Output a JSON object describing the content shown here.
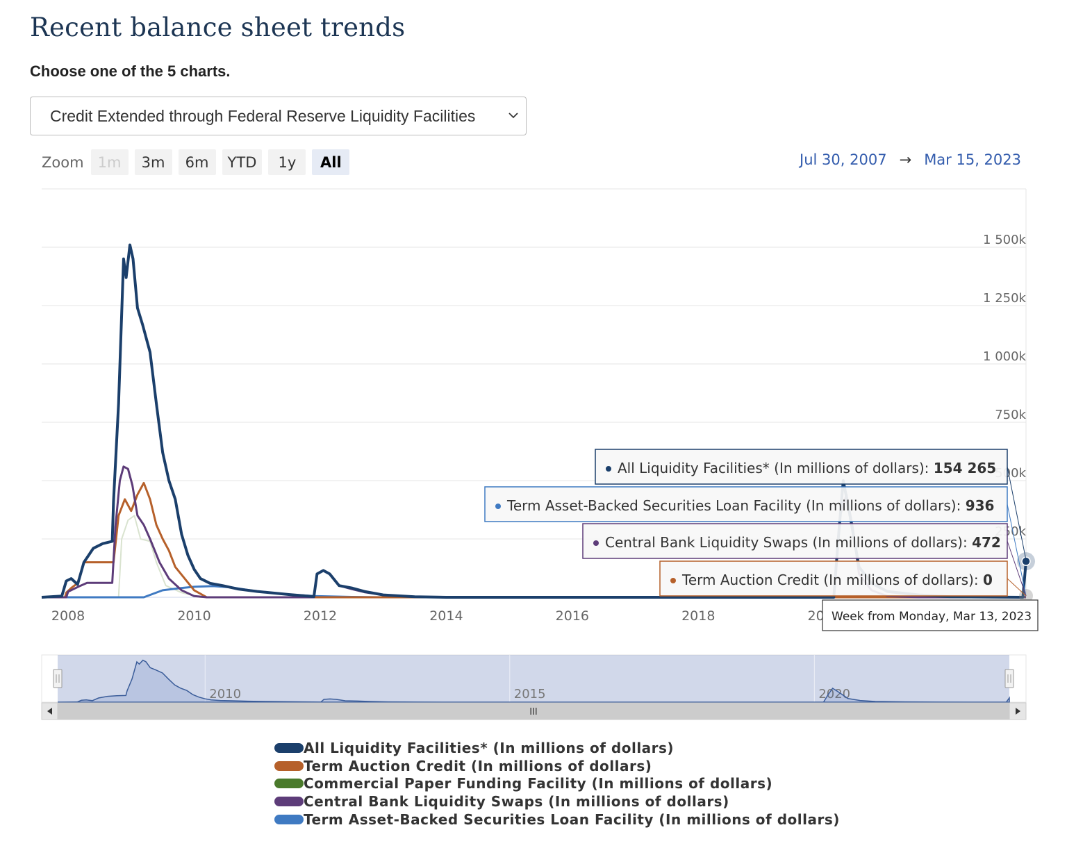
{
  "page": {
    "title": "Recent balance sheet trends",
    "prompt": "Choose one of the 5 charts.",
    "select_value": "Credit Extended through Federal Reserve Liquidity Facilities"
  },
  "zoom": {
    "label": "Zoom",
    "buttons": [
      {
        "label": "1m",
        "state": "disabled"
      },
      {
        "label": "3m",
        "state": "normal"
      },
      {
        "label": "6m",
        "state": "normal"
      },
      {
        "label": "YTD",
        "state": "normal"
      },
      {
        "label": "1y",
        "state": "normal"
      },
      {
        "label": "All",
        "state": "active"
      }
    ]
  },
  "range": {
    "from": "Jul 30, 2007",
    "arrow": "→",
    "to": "Mar 15, 2023"
  },
  "tooltip": {
    "week_label": "Week from Monday, Mar 13, 2023",
    "entries": [
      {
        "text": "All Liquidity Facilities* (In millions of dollars): ",
        "value": "154 265",
        "color": "#1b3f6b"
      },
      {
        "text": "Term Asset-Backed Securities Loan Facility (In millions of dollars): ",
        "value": "936",
        "color": "#3f7ac2"
      },
      {
        "text": "Central Bank Liquidity Swaps (In millions of dollars): ",
        "value": "472",
        "color": "#5d3c79"
      },
      {
        "text": "Term Auction Credit (In millions of dollars): ",
        "value": "0",
        "color": "#b6602a"
      }
    ]
  },
  "navigator": {
    "labels": [
      {
        "text": "2010",
        "year": 2010
      },
      {
        "text": "2015",
        "year": 2015
      },
      {
        "text": "2020",
        "year": 2020
      }
    ],
    "scroll_grip": "III"
  },
  "chart_data": {
    "type": "line",
    "y_ticks": [
      {
        "value": 250000,
        "label": "250k"
      },
      {
        "value": 500000,
        "label": "500k"
      },
      {
        "value": 750000,
        "label": "750k"
      },
      {
        "value": 1000000,
        "label": "1 000k"
      },
      {
        "value": 1250000,
        "label": "1 250k"
      },
      {
        "value": 1500000,
        "label": "1 500k"
      }
    ],
    "x_ticks": [
      2008,
      2010,
      2012,
      2014,
      2016,
      2018,
      2020
    ],
    "xlim": [
      2007.58,
      2023.2
    ],
    "ylim": [
      0,
      1750000
    ],
    "legend_position": "bottom",
    "series": [
      {
        "name": "All Liquidity Facilities* (In millions of dollars)",
        "color": "#1b3f6b",
        "points": [
          [
            2007.58,
            0
          ],
          [
            2007.9,
            5000
          ],
          [
            2007.97,
            70000
          ],
          [
            2008.05,
            80000
          ],
          [
            2008.15,
            55000
          ],
          [
            2008.25,
            150000
          ],
          [
            2008.4,
            210000
          ],
          [
            2008.55,
            230000
          ],
          [
            2008.7,
            240000
          ],
          [
            2008.72,
            410000
          ],
          [
            2008.8,
            830000
          ],
          [
            2008.88,
            1450000
          ],
          [
            2008.92,
            1370000
          ],
          [
            2008.98,
            1510000
          ],
          [
            2009.03,
            1450000
          ],
          [
            2009.1,
            1240000
          ],
          [
            2009.18,
            1170000
          ],
          [
            2009.3,
            1050000
          ],
          [
            2009.4,
            830000
          ],
          [
            2009.5,
            620000
          ],
          [
            2009.6,
            500000
          ],
          [
            2009.7,
            420000
          ],
          [
            2009.8,
            270000
          ],
          [
            2009.9,
            180000
          ],
          [
            2010.0,
            120000
          ],
          [
            2010.1,
            80000
          ],
          [
            2010.25,
            60000
          ],
          [
            2010.45,
            50000
          ],
          [
            2010.7,
            35000
          ],
          [
            2011.0,
            25000
          ],
          [
            2011.5,
            12000
          ],
          [
            2011.9,
            3000
          ],
          [
            2011.95,
            100000
          ],
          [
            2012.05,
            115000
          ],
          [
            2012.15,
            100000
          ],
          [
            2012.3,
            50000
          ],
          [
            2012.5,
            40000
          ],
          [
            2012.7,
            25000
          ],
          [
            2013.0,
            10000
          ],
          [
            2013.5,
            2000
          ],
          [
            2014.0,
            0
          ],
          [
            2020.15,
            0
          ],
          [
            2020.22,
            250000
          ],
          [
            2020.3,
            500000
          ],
          [
            2020.4,
            360000
          ],
          [
            2020.55,
            130000
          ],
          [
            2020.75,
            60000
          ],
          [
            2021.0,
            25000
          ],
          [
            2021.5,
            10000
          ],
          [
            2022.0,
            2000
          ],
          [
            2023.15,
            0
          ],
          [
            2023.2,
            154265
          ]
        ]
      },
      {
        "name": "Term Auction Credit (In millions of dollars)",
        "color": "#b6602a",
        "points": [
          [
            2007.58,
            0
          ],
          [
            2007.95,
            0
          ],
          [
            2007.97,
            20000
          ],
          [
            2008.05,
            40000
          ],
          [
            2008.15,
            60000
          ],
          [
            2008.25,
            150000
          ],
          [
            2008.55,
            150000
          ],
          [
            2008.72,
            150000
          ],
          [
            2008.8,
            350000
          ],
          [
            2008.9,
            420000
          ],
          [
            2009.0,
            370000
          ],
          [
            2009.1,
            440000
          ],
          [
            2009.2,
            490000
          ],
          [
            2009.3,
            420000
          ],
          [
            2009.4,
            310000
          ],
          [
            2009.5,
            250000
          ],
          [
            2009.6,
            200000
          ],
          [
            2009.7,
            130000
          ],
          [
            2009.85,
            80000
          ],
          [
            2010.0,
            30000
          ],
          [
            2010.2,
            0
          ],
          [
            2023.2,
            0
          ]
        ]
      },
      {
        "name": "Commercial Paper Funding Facility (In millions of dollars)",
        "color": "#4a7a2b",
        "points": [
          [
            2007.58,
            0
          ],
          [
            2008.8,
            0
          ],
          [
            2008.85,
            250000
          ],
          [
            2008.95,
            330000
          ],
          [
            2009.05,
            350000
          ],
          [
            2009.15,
            250000
          ],
          [
            2009.3,
            240000
          ],
          [
            2009.4,
            150000
          ],
          [
            2009.55,
            50000
          ],
          [
            2009.8,
            20000
          ],
          [
            2010.1,
            0
          ],
          [
            2020.25,
            0
          ],
          [
            2020.3,
            10000
          ],
          [
            2020.45,
            8000
          ],
          [
            2020.8,
            5000
          ],
          [
            2021.3,
            0
          ],
          [
            2023.2,
            0
          ]
        ]
      },
      {
        "name": "Central Bank Liquidity Swaps (In millions of dollars)",
        "color": "#5d3c79",
        "points": [
          [
            2007.58,
            0
          ],
          [
            2007.97,
            0
          ],
          [
            2008.0,
            24000
          ],
          [
            2008.2,
            50000
          ],
          [
            2008.3,
            62000
          ],
          [
            2008.7,
            62000
          ],
          [
            2008.75,
            300000
          ],
          [
            2008.82,
            500000
          ],
          [
            2008.88,
            560000
          ],
          [
            2008.95,
            550000
          ],
          [
            2009.02,
            480000
          ],
          [
            2009.1,
            350000
          ],
          [
            2009.2,
            310000
          ],
          [
            2009.3,
            250000
          ],
          [
            2009.45,
            150000
          ],
          [
            2009.6,
            80000
          ],
          [
            2009.8,
            30000
          ],
          [
            2010.0,
            5000
          ],
          [
            2010.2,
            0
          ],
          [
            2011.9,
            0
          ],
          [
            2011.95,
            100000
          ],
          [
            2012.05,
            115000
          ],
          [
            2012.15,
            100000
          ],
          [
            2012.3,
            50000
          ],
          [
            2012.5,
            35000
          ],
          [
            2012.7,
            22000
          ],
          [
            2013.0,
            10000
          ],
          [
            2013.5,
            2000
          ],
          [
            2014.0,
            0
          ],
          [
            2020.15,
            0
          ],
          [
            2020.25,
            350000
          ],
          [
            2020.35,
            440000
          ],
          [
            2020.45,
            300000
          ],
          [
            2020.55,
            100000
          ],
          [
            2020.75,
            30000
          ],
          [
            2021.0,
            5000
          ],
          [
            2021.5,
            0
          ],
          [
            2023.2,
            472
          ]
        ]
      },
      {
        "name": "Term Asset-Backed Securities Loan Facility (In millions of dollars)",
        "color": "#3f7ac2",
        "points": [
          [
            2007.58,
            0
          ],
          [
            2009.2,
            0
          ],
          [
            2009.3,
            10000
          ],
          [
            2009.5,
            30000
          ],
          [
            2009.8,
            40000
          ],
          [
            2010.0,
            45000
          ],
          [
            2010.3,
            48000
          ],
          [
            2010.6,
            42000
          ],
          [
            2011.0,
            25000
          ],
          [
            2011.5,
            12000
          ],
          [
            2011.9,
            5000
          ],
          [
            2012.5,
            1500
          ],
          [
            2013.0,
            0
          ],
          [
            2020.3,
            0
          ],
          [
            2020.5,
            4000
          ],
          [
            2021.5,
            2000
          ],
          [
            2022.5,
            1000
          ],
          [
            2023.2,
            936
          ]
        ]
      }
    ]
  }
}
